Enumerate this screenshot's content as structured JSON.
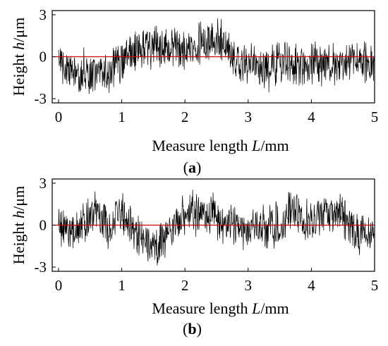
{
  "chart_data": [
    {
      "type": "line",
      "panel_label": "a",
      "xlabel": {
        "prefix": "Measure length ",
        "var": "L",
        "unit": "/mm"
      },
      "ylabel": {
        "prefix": "Height ",
        "var": "h",
        "unit": "/μm"
      },
      "xlim": [
        -0.1,
        5.0
      ],
      "ylim": [
        -3.3,
        3.3
      ],
      "x_ticks": [
        "0",
        "1",
        "2",
        "3",
        "4",
        "5"
      ],
      "y_ticks": [
        "3",
        "0",
        "-3"
      ],
      "reference_line": {
        "y": 0,
        "color": "#cc0000"
      },
      "series": [
        {
          "color": "#000000",
          "x": [
            0.0,
            0.1,
            0.2,
            0.3,
            0.4,
            0.5,
            0.6,
            0.7,
            0.8,
            0.9,
            1.0,
            1.1,
            1.2,
            1.3,
            1.4,
            1.5,
            1.6,
            1.7,
            1.8,
            1.9,
            2.0,
            2.1,
            2.2,
            2.3,
            2.4,
            2.5,
            2.6,
            2.7,
            2.8,
            2.9,
            3.0,
            3.1,
            3.2,
            3.3,
            3.4,
            3.5,
            3.6,
            3.7,
            3.8,
            3.9,
            4.0,
            4.1,
            4.2,
            4.3,
            4.4,
            4.5,
            4.6,
            4.7,
            4.8,
            4.9,
            5.0
          ],
          "values": [
            0.3,
            -0.8,
            -1.0,
            -1.2,
            -1.0,
            -1.3,
            -1.0,
            -0.8,
            -1.5,
            -0.8,
            -0.3,
            0.0,
            0.2,
            0.3,
            0.4,
            0.5,
            0.6,
            0.7,
            0.6,
            0.4,
            0.5,
            0.8,
            1.0,
            1.1,
            1.4,
            1.2,
            1.3,
            0.6,
            -0.2,
            -0.5,
            -0.3,
            -0.6,
            -0.8,
            -1.1,
            -0.5,
            -0.3,
            -0.4,
            -0.6,
            -0.5,
            -0.5,
            -0.3,
            -0.5,
            -0.5,
            -0.6,
            -0.7,
            -0.7,
            -0.5,
            -0.4,
            -0.6,
            -0.3,
            -0.4
          ]
        }
      ]
    },
    {
      "type": "line",
      "panel_label": "b",
      "xlabel": {
        "prefix": "Measure length ",
        "var": "L",
        "unit": "/mm"
      },
      "ylabel": {
        "prefix": "Height ",
        "var": "h",
        "unit": "/μm"
      },
      "xlim": [
        -0.1,
        5.0
      ],
      "ylim": [
        -3.3,
        3.3
      ],
      "x_ticks": [
        "0",
        "1",
        "2",
        "3",
        "4",
        "5"
      ],
      "y_ticks": [
        "3",
        "0",
        "-3"
      ],
      "reference_line": {
        "y": 0,
        "color": "#cc0000"
      },
      "series": [
        {
          "color": "#000000",
          "x": [
            0.0,
            0.1,
            0.2,
            0.3,
            0.4,
            0.5,
            0.6,
            0.7,
            0.8,
            0.9,
            1.0,
            1.1,
            1.2,
            1.3,
            1.4,
            1.5,
            1.6,
            1.7,
            1.8,
            1.9,
            2.0,
            2.1,
            2.2,
            2.3,
            2.4,
            2.5,
            2.6,
            2.7,
            2.8,
            2.9,
            3.0,
            3.1,
            3.2,
            3.3,
            3.4,
            3.5,
            3.6,
            3.7,
            3.8,
            3.9,
            4.0,
            4.1,
            4.2,
            4.3,
            4.4,
            4.5,
            4.6,
            4.7,
            4.8,
            4.9,
            5.0
          ],
          "values": [
            0.0,
            -0.5,
            -0.6,
            -0.2,
            0.2,
            0.6,
            0.8,
            0.5,
            -0.5,
            0.3,
            0.8,
            0.4,
            -0.4,
            -0.7,
            -1.1,
            -1.5,
            -1.2,
            -0.6,
            -0.2,
            0.2,
            0.6,
            1.0,
            0.8,
            0.6,
            0.8,
            0.4,
            -0.2,
            0.2,
            0.0,
            -0.5,
            -0.2,
            0.3,
            0.0,
            -0.3,
            0.0,
            0.4,
            0.7,
            1.1,
            0.8,
            0.3,
            0.1,
            0.4,
            0.8,
            0.6,
            1.0,
            0.5,
            0.2,
            -0.3,
            -0.6,
            -0.4,
            -0.5
          ]
        }
      ]
    }
  ]
}
